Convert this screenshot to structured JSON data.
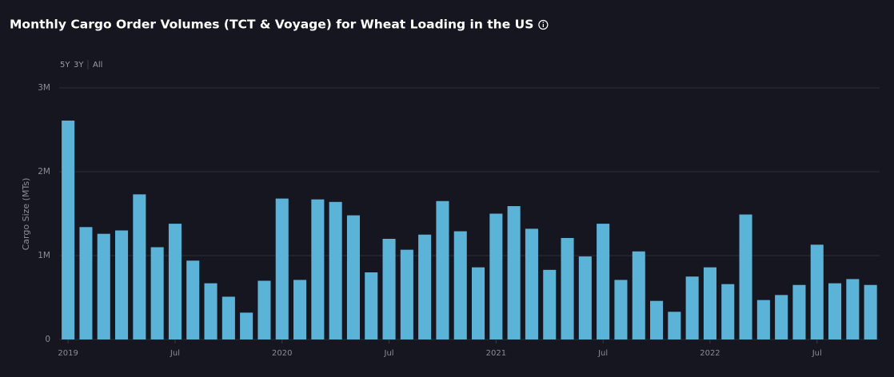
{
  "chart_data": {
    "type": "bar",
    "title": "Monthly Cargo Order Volumes (TCT & Voyage) for Wheat Loading in the US",
    "range_options": [
      "5Y",
      "3Y",
      "All"
    ],
    "y_label": "Cargo Size (MTs)",
    "categories": [
      "2019",
      null,
      null,
      null,
      null,
      null,
      "Jul",
      null,
      null,
      null,
      null,
      null,
      "2020",
      null,
      null,
      null,
      null,
      null,
      "Jul",
      null,
      null,
      null,
      null,
      null,
      "2021",
      null,
      null,
      null,
      null,
      null,
      "Jul",
      null,
      null,
      null,
      null,
      null,
      "2022",
      null,
      null,
      null,
      null,
      null,
      "Jul",
      null,
      null,
      null
    ],
    "values": [
      2610000,
      1340000,
      1260000,
      1300000,
      1730000,
      1100000,
      1380000,
      940000,
      670000,
      510000,
      320000,
      700000,
      1680000,
      710000,
      1670000,
      1640000,
      1480000,
      800000,
      1200000,
      1070000,
      1250000,
      1650000,
      1290000,
      860000,
      1500000,
      1590000,
      1320000,
      830000,
      1210000,
      990000,
      1380000,
      710000,
      1050000,
      460000,
      330000,
      750000,
      860000,
      660000,
      1490000,
      470000,
      530000,
      650000,
      1130000,
      670000,
      720000,
      650000
    ],
    "color": "#5cb3d8",
    "ylim": [
      0,
      3200000
    ],
    "yticks": [
      0,
      {
        "value": 1000000,
        "label": "1M"
      },
      {
        "value": 2000000,
        "label": "2M"
      },
      {
        "value": 3000000,
        "label": "3M"
      }
    ],
    "grid": true
  }
}
